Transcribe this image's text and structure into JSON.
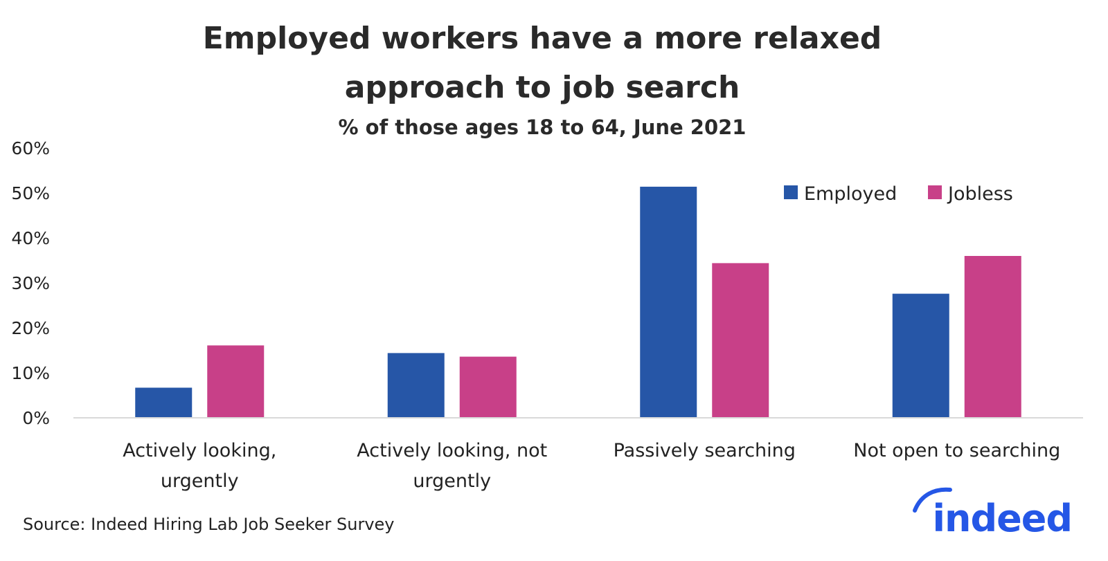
{
  "chart_data": {
    "type": "bar",
    "title_lines": [
      "Employed workers have a more relaxed",
      "approach to job search"
    ],
    "subtitle": "% of those ages 18 to 64, June 2021",
    "categories": [
      [
        "Actively looking,",
        "urgently"
      ],
      [
        "Actively looking, not",
        "urgently"
      ],
      [
        "Passively searching"
      ],
      [
        "Not open to searching"
      ]
    ],
    "series": [
      {
        "name": "Employed",
        "color": "#2656a7",
        "values": [
          6.7,
          14.4,
          51.4,
          27.6
        ]
      },
      {
        "name": "Jobless",
        "color": "#c84088",
        "values": [
          16.1,
          13.6,
          34.4,
          36.0
        ]
      }
    ],
    "ylim": [
      0,
      60
    ],
    "yticks": [
      "0%",
      "10%",
      "20%",
      "30%",
      "40%",
      "50%",
      "60%"
    ],
    "xlabel": "",
    "ylabel": "",
    "grid": false,
    "legend_position": "top-right",
    "source": "Source: Indeed Hiring Lab Job Seeker Survey"
  },
  "logo": {
    "text": "indeed",
    "icon": "indeed-arc-icon",
    "color": "#2557e6"
  }
}
